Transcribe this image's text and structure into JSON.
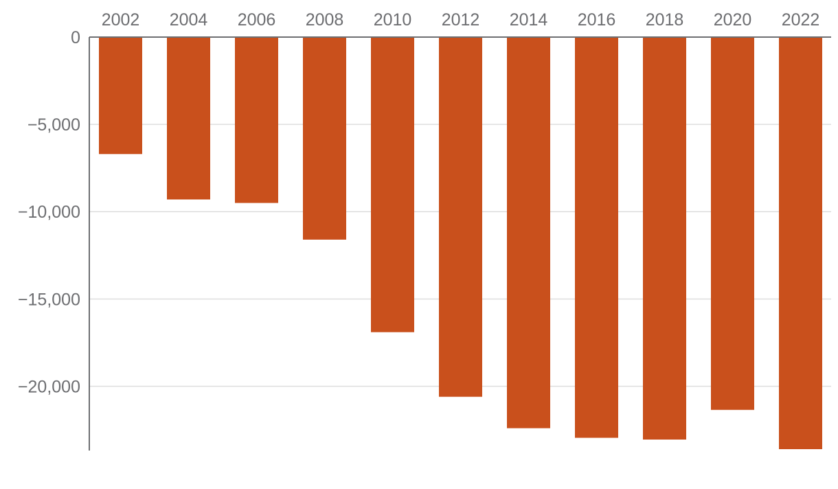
{
  "chart_data": {
    "type": "bar",
    "title": "",
    "xlabel": "",
    "ylabel": "",
    "categories": [
      "2002",
      "2004",
      "2006",
      "2008",
      "2010",
      "2012",
      "2014",
      "2016",
      "2018",
      "2020",
      "2022"
    ],
    "values": [
      -6700,
      -9300,
      -9500,
      -11600,
      -16900,
      -20600,
      -22400,
      -22950,
      -23050,
      -21350,
      -23600
    ],
    "ylim": [
      -23600,
      0
    ],
    "yticks": [
      0,
      -5000,
      -10000,
      -15000,
      -20000
    ],
    "ytick_labels": [
      "0",
      "−5,000",
      "−10,000",
      "−15,000",
      "−20,000"
    ],
    "x_axis_position": "top",
    "grid": true,
    "legend": "none",
    "colors": {
      "bar": "#c9501c",
      "grid": "#dedede",
      "axis": "#6d6e71",
      "text": "#6d6e71"
    }
  }
}
